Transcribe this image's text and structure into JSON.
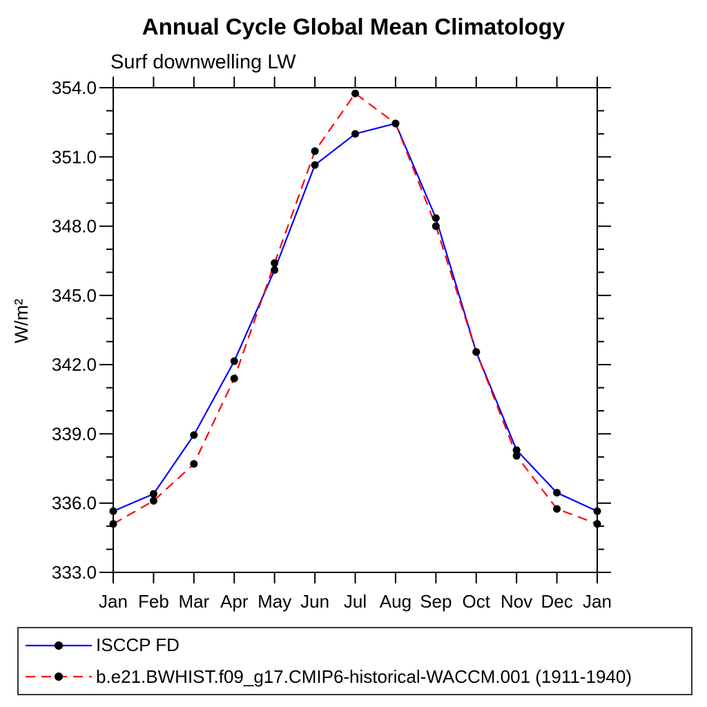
{
  "chart_data": {
    "type": "line",
    "title": "Annual Cycle Global Mean Climatology",
    "subtitle": "Surf downwelling LW",
    "ylabel": "W/m²",
    "xlabel": "",
    "categories": [
      "Jan",
      "Feb",
      "Mar",
      "Apr",
      "May",
      "Jun",
      "Jul",
      "Aug",
      "Sep",
      "Oct",
      "Nov",
      "Dec",
      "Jan"
    ],
    "ylim": [
      333.0,
      354.0
    ],
    "ytick_major_step": 3.0,
    "ytick_minor_step": 1.0,
    "ytick_labels": [
      "333.0",
      "336.0",
      "339.0",
      "342.0",
      "345.0",
      "348.0",
      "351.0",
      "354.0"
    ],
    "grid": false,
    "legend_position": "bottom",
    "marker": {
      "shape": "circle",
      "color": "#000000"
    },
    "axis_color": "#000000",
    "series": [
      {
        "name": "ISCCP FD",
        "color": "#0000ff",
        "style": "solid",
        "values": [
          335.65,
          336.4,
          338.95,
          342.15,
          346.1,
          350.65,
          352.0,
          352.45,
          348.35,
          342.55,
          338.3,
          336.45,
          335.65
        ]
      },
      {
        "name": "b.e21.BWHIST.f09_g17.CMIP6-historical-WACCM.001 (1911-1940)",
        "color": "#ff0000",
        "style": "dashed",
        "values": [
          335.1,
          336.1,
          337.7,
          341.4,
          346.4,
          351.25,
          353.75,
          352.45,
          348.0,
          342.55,
          338.05,
          335.75,
          335.1
        ]
      }
    ]
  }
}
